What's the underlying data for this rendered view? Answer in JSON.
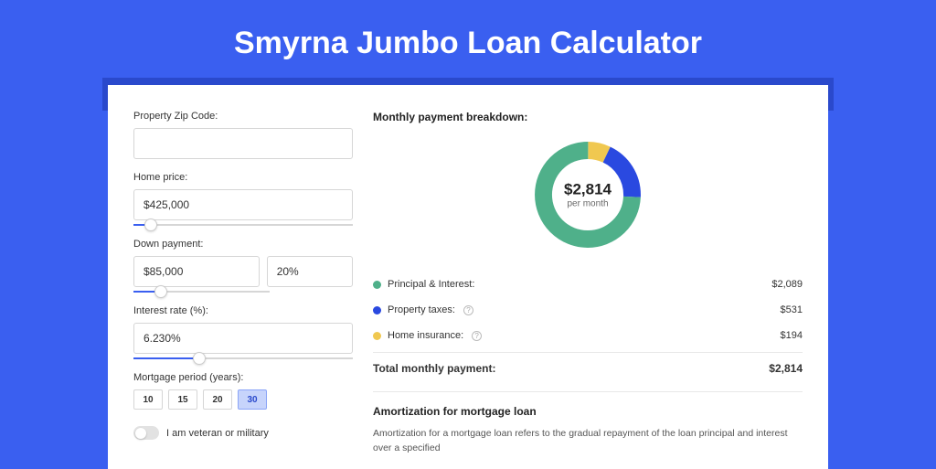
{
  "page": {
    "title": "Smyrna Jumbo Loan Calculator",
    "background_color": "#3a5ff0",
    "accent_bar_color": "#2a49cc",
    "card_bg": "#ffffff"
  },
  "form": {
    "zip": {
      "label": "Property Zip Code:",
      "value": ""
    },
    "home_price": {
      "label": "Home price:",
      "value": "$425,000",
      "slider_pct": 8
    },
    "down_payment": {
      "label": "Down payment:",
      "value": "$85,000",
      "pct_value": "20%",
      "slider_pct": 20
    },
    "interest_rate": {
      "label": "Interest rate (%):",
      "value": "6.230%",
      "slider_pct": 30
    },
    "mortgage_period": {
      "label": "Mortgage period (years):",
      "options": [
        "10",
        "15",
        "20",
        "30"
      ],
      "selected": "30"
    },
    "veteran": {
      "label": "I am veteran or military",
      "checked": false
    }
  },
  "breakdown": {
    "title": "Monthly payment breakdown:",
    "donut": {
      "amount": "$2,814",
      "sub": "per month",
      "slices": [
        {
          "label": "Principal & Interest:",
          "value": "$2,089",
          "numeric": 2089,
          "color": "#4fb08a"
        },
        {
          "label": "Property taxes:",
          "value": "$531",
          "numeric": 531,
          "color": "#2a49e0",
          "info": true
        },
        {
          "label": "Home insurance:",
          "value": "$194",
          "numeric": 194,
          "color": "#f0c850",
          "info": true
        }
      ],
      "ring_width": 18,
      "bg": "#ffffff"
    },
    "total": {
      "label": "Total monthly payment:",
      "value": "$2,814"
    }
  },
  "amortization": {
    "title": "Amortization for mortgage loan",
    "text": "Amortization for a mortgage loan refers to the gradual repayment of the loan principal and interest over a specified"
  }
}
